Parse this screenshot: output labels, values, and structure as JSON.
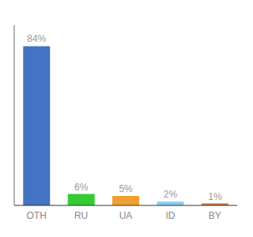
{
  "chart_data": {
    "type": "bar",
    "categories": [
      "OTH",
      "RU",
      "UA",
      "ID",
      "BY"
    ],
    "values": [
      84,
      6,
      5,
      2,
      1
    ],
    "value_labels": [
      "84%",
      "6%",
      "5%",
      "2%",
      "1%"
    ],
    "colors": [
      "#4472c4",
      "#33cc33",
      "#f0a030",
      "#88ccee",
      "#c87040"
    ],
    "ylim": [
      0,
      95
    ],
    "data_labels": true,
    "tick_labels": "x",
    "grid": false
  }
}
